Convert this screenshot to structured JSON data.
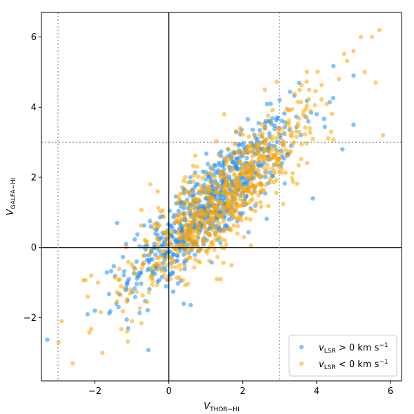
{
  "chart_data": {
    "type": "scatter",
    "title": "",
    "xlabel": "V_THOR−HI",
    "ylabel": "V_GALFA−HI",
    "xlim": [
      -3.45,
      6.3
    ],
    "ylim": [
      -3.8,
      6.7
    ],
    "xticks": [
      -2,
      0,
      2,
      4,
      6
    ],
    "yticks": [
      -2,
      0,
      2,
      4,
      6
    ],
    "grid": false,
    "legend_position": "lower-right",
    "reference_lines": {
      "solid": [
        {
          "axis": "x",
          "value": 0
        },
        {
          "axis": "y",
          "value": 0
        }
      ],
      "dotted": [
        {
          "axis": "x",
          "value": -3
        },
        {
          "axis": "x",
          "value": 3
        },
        {
          "axis": "y",
          "value": 3
        }
      ]
    },
    "series": [
      {
        "name": "v_LSR > 0 km s^-1",
        "color": "#1E90FF",
        "n_points": 750,
        "mean": [
          1.15,
          1.25
        ],
        "sd": [
          1.1,
          1.2
        ],
        "corr": 0.86,
        "extreme_points": [
          [
            -2.2,
            -1.9
          ],
          [
            -2.0,
            -1.8
          ],
          [
            3.9,
            1.4
          ],
          [
            4.7,
            2.8
          ],
          [
            5.0,
            3.5
          ],
          [
            4.0,
            3.8
          ],
          [
            3.0,
            4.2
          ],
          [
            -1.4,
            0.7
          ],
          [
            -1.1,
            -2.3
          ],
          [
            0.4,
            -1.6
          ],
          [
            5.0,
            4.9
          ]
        ]
      },
      {
        "name": "v_LSR < 0 km s^-1",
        "color": "#FFA500",
        "n_points": 750,
        "mean": [
          1.55,
          1.5
        ],
        "sd": [
          1.25,
          1.35
        ],
        "corr": 0.87,
        "extreme_points": [
          [
            -2.9,
            -2.1
          ],
          [
            -2.6,
            -3.3
          ],
          [
            -1.8,
            -3.0
          ],
          [
            5.7,
            6.2
          ],
          [
            5.5,
            6.0
          ],
          [
            5.2,
            6.0
          ],
          [
            5.0,
            5.6
          ],
          [
            5.3,
            5.0
          ],
          [
            5.8,
            3.2
          ],
          [
            5.6,
            4.7
          ],
          [
            4.6,
            4.8
          ],
          [
            3.8,
            4.5
          ],
          [
            2.6,
            4.5
          ],
          [
            1.5,
            3.8
          ],
          [
            0.4,
            1.9
          ],
          [
            -0.5,
            1.8
          ],
          [
            -0.3,
            1.6
          ],
          [
            -2.1,
            -0.8
          ],
          [
            -2.2,
            -1.4
          ],
          [
            1.7,
            -0.5
          ],
          [
            1.3,
            -0.9
          ],
          [
            1.4,
            -0.9
          ],
          [
            -1.0,
            -2.1
          ]
        ]
      }
    ]
  },
  "axis_text": {
    "x_main": "V",
    "x_sub": "THOR−HI",
    "y_main": "V",
    "y_sub": "GALFA−HI"
  },
  "legend": {
    "entries": [
      {
        "sym": "v",
        "sub": "LSR",
        "rel": " > 0 km s",
        "exp": "−1",
        "color": "#1E90FF"
      },
      {
        "sym": "v",
        "sub": "LSR",
        "rel": " < 0 km s",
        "exp": "−1",
        "color": "#FFA500"
      }
    ]
  }
}
